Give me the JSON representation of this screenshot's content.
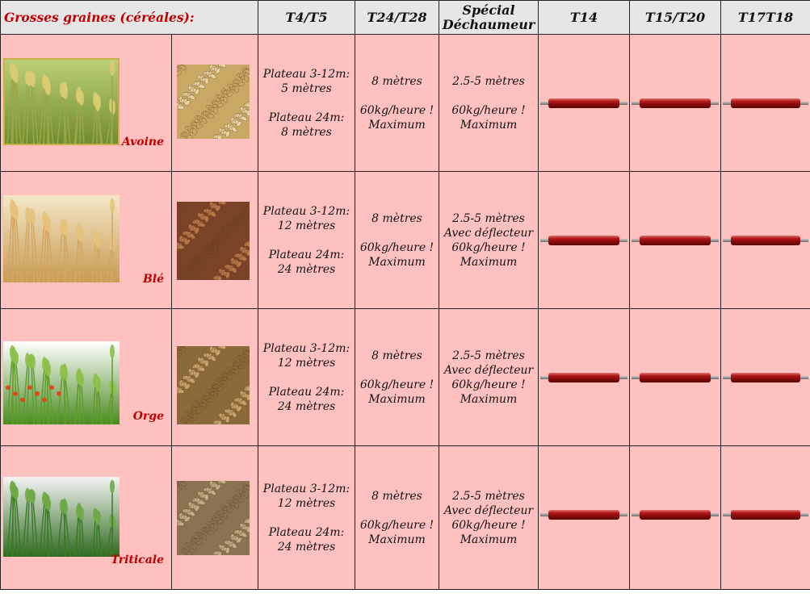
{
  "table": {
    "header": {
      "category": "Grosses graines (céréales):",
      "columns": [
        "T4/T5",
        "T24/T28",
        "Spécial\nDéchaumeur",
        "T14",
        "T15/T20",
        "T17T18"
      ]
    },
    "rows": [
      {
        "name": "Avoine",
        "t4t5": [
          "Plateau 3-12m:",
          "5 mètres",
          "",
          "Plateau 24m:",
          "8 mètres"
        ],
        "t24t28": [
          "8 mètres",
          "",
          "60kg/heure !",
          "Maximum"
        ],
        "special": [
          "2.5-5 mètres",
          "",
          "60kg/heure !",
          "Maximum"
        ]
      },
      {
        "name": "Blé",
        "t4t5": [
          "Plateau 3-12m:",
          "12 mètres",
          "",
          "Plateau 24m:",
          "24 mètres"
        ],
        "t24t28": [
          "8 mètres",
          "",
          "60kg/heure !",
          "Maximum"
        ],
        "special": [
          "2.5-5 mètres",
          "Avec déflecteur",
          "60kg/heure !",
          "Maximum"
        ]
      },
      {
        "name": "Orge",
        "t4t5": [
          "Plateau 3-12m:",
          "12 mètres",
          "",
          "Plateau 24m:",
          "24 mètres"
        ],
        "t24t28": [
          "8 mètres",
          "",
          "60kg/heure !",
          "Maximum"
        ],
        "special": [
          "2.5-5 mètres",
          "Avec déflecteur",
          "60kg/heure !",
          "Maximum"
        ]
      },
      {
        "name": "Triticale",
        "t4t5": [
          "Plateau 3-12m:",
          "12 mètres",
          "",
          "Plateau 24m:",
          "24 mètres"
        ],
        "t24t28": [
          "8 mètres",
          "",
          "60kg/heure !",
          "Maximum"
        ],
        "special": [
          "2.5-5 mètres",
          "Avec déflecteur",
          "60kg/heure !",
          "Maximum"
        ]
      }
    ]
  },
  "colors": {
    "header_bg": "#e6e6e6",
    "row_bg": "#ffc0c0",
    "accent_red": "#c00000",
    "roller_red": "#8a0c0c"
  },
  "icons": [
    "wheat-field-photo",
    "grain-sample-photo",
    "seed-roller-icon"
  ]
}
